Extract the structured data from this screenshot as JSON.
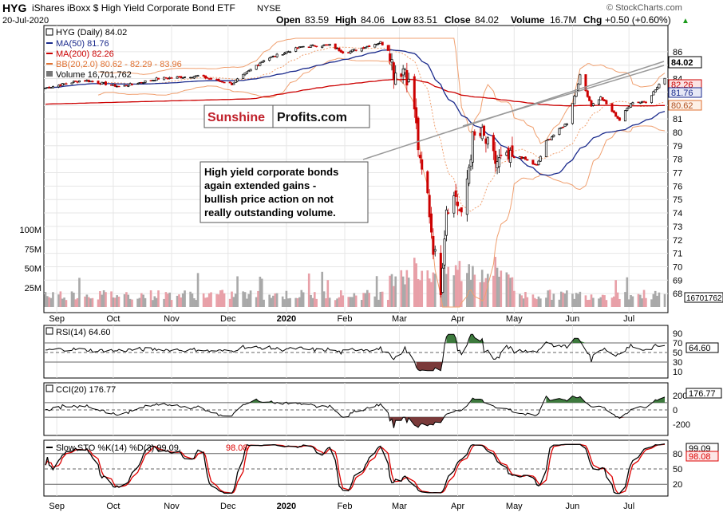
{
  "header": {
    "symbol": "HYG",
    "name": "iShares iBoxx $ High Yield Corporate Bond ETF",
    "exchange": "NYSE",
    "date": "20-Jul-2020",
    "open_label": "Open",
    "open": "83.59",
    "high_label": "High",
    "high": "84.06",
    "low_label": "Low",
    "low": "83.51",
    "close_label": "Close",
    "close": "84.02",
    "volume_label": "Volume",
    "volume": "16.7M",
    "chg_label": "Chg",
    "chg": "+0.50 (+0.60%)",
    "chg_arrow": "▲",
    "watermark": "© StockCharts.com"
  },
  "legend": {
    "main": "HYG (Daily) 84.02",
    "ma50": "MA(50) 81.76",
    "ma200": "MA(200) 82.26",
    "bb": "BB(20,2.0) 80.62 - 82.29 - 83.96",
    "volume": "Volume 16,701,762"
  },
  "colors": {
    "up": "#000000",
    "down": "#cc0000",
    "ma50": "#1a2a8c",
    "ma200": "#cc0000",
    "bb": "#f0a070",
    "vol_up": "#a9a9a9",
    "vol_down": "#e8a0a8",
    "positive_fill": "#3d7a3d",
    "negative_fill": "#7a3a3a",
    "stoch_k": "#000000",
    "stoch_d": "#dd0000",
    "trendline": "#999999"
  },
  "logo": {
    "part1": "Sunshine",
    "part2": "Profits.com"
  },
  "annotation": {
    "lines": [
      "High yield corporate bonds",
      "again extended gains -",
      "bullish price action on not",
      "really outstanding volume."
    ]
  },
  "price_badges": {
    "close": "84.02",
    "ma200": "82.26",
    "ma50": "81.76",
    "bb_lower": "80.62",
    "volume": "16701762"
  },
  "x_axis": {
    "months": [
      "Sep",
      "Oct",
      "Nov",
      "Dec",
      "2020",
      "Feb",
      "Mar",
      "Apr",
      "May",
      "Jun",
      "Jul"
    ]
  },
  "chart_data": [
    {
      "type": "candlestick",
      "title": "HYG (Daily) 84.02",
      "y_ticks": [
        "86",
        "85",
        "84",
        "83",
        "82",
        "81",
        "80",
        "79",
        "78",
        "77",
        "76",
        "75",
        "74",
        "73",
        "72",
        "71",
        "70",
        "69",
        "68"
      ],
      "ylim": [
        67,
        87
      ],
      "anchors": [
        {
          "date": "2019-08-26",
          "close": 83.3
        },
        {
          "date": "2019-09-15",
          "close": 83.9
        },
        {
          "date": "2019-10-05",
          "close": 83.4
        },
        {
          "date": "2019-10-25",
          "close": 84.0
        },
        {
          "date": "2019-11-15",
          "close": 84.2
        },
        {
          "date": "2019-12-03",
          "close": 83.6
        },
        {
          "date": "2019-12-20",
          "close": 85.4
        },
        {
          "date": "2020-01-10",
          "close": 86.4
        },
        {
          "date": "2020-01-24",
          "close": 86.5
        },
        {
          "date": "2020-02-01",
          "close": 85.9
        },
        {
          "date": "2020-02-20",
          "close": 86.7
        },
        {
          "date": "2020-02-25",
          "close": 86.0
        },
        {
          "date": "2020-02-27",
          "close": 84.5
        },
        {
          "date": "2020-03-04",
          "close": 84.8
        },
        {
          "date": "2020-03-09",
          "close": 81.8
        },
        {
          "date": "2020-03-12",
          "close": 77.5
        },
        {
          "date": "2020-03-16",
          "close": 75.3
        },
        {
          "date": "2020-03-19",
          "close": 71.5
        },
        {
          "date": "2020-03-23",
          "close": 68.5
        },
        {
          "date": "2020-03-26",
          "close": 74.5
        },
        {
          "date": "2020-03-31",
          "close": 75.3
        },
        {
          "date": "2020-04-03",
          "close": 73.5
        },
        {
          "date": "2020-04-09",
          "close": 79.5
        },
        {
          "date": "2020-04-14",
          "close": 79.8
        },
        {
          "date": "2020-04-21",
          "close": 77.8
        },
        {
          "date": "2020-04-30",
          "close": 78.0
        },
        {
          "date": "2020-05-04",
          "close": 78.2
        },
        {
          "date": "2020-05-13",
          "close": 77.5
        },
        {
          "date": "2020-05-18",
          "close": 79.3
        },
        {
          "date": "2020-05-29",
          "close": 80.7
        },
        {
          "date": "2020-06-05",
          "close": 84.2
        },
        {
          "date": "2020-06-11",
          "close": 82.0
        },
        {
          "date": "2020-06-16",
          "close": 82.6
        },
        {
          "date": "2020-06-26",
          "close": 80.9
        },
        {
          "date": "2020-07-02",
          "close": 82.2
        },
        {
          "date": "2020-07-10",
          "close": 82.3
        },
        {
          "date": "2020-07-20",
          "close": 84.02
        }
      ],
      "ma50": {
        "name": "MA(50) 81.76",
        "last": 81.76
      },
      "ma200": {
        "name": "MA(200) 82.26",
        "last": 82.26
      },
      "bollinger": {
        "name": "BB(20,2.0) 80.62 - 82.29 - 83.96",
        "lower": 80.62,
        "middle": 82.29,
        "upper": 83.96
      }
    },
    {
      "type": "bar",
      "title": "Volume 16,701,762",
      "y_ticks": [
        "100M",
        "75M",
        "50M",
        "25M"
      ],
      "ylim": [
        0,
        110
      ],
      "last": 16.7
    },
    {
      "type": "line",
      "title": "RSI(14) 64.60",
      "y_ticks": [
        "90",
        "70",
        "50",
        "30",
        "10"
      ],
      "ylim": [
        0,
        100
      ],
      "last": 64.6
    },
    {
      "type": "line",
      "title": "CCI(20) 176.77",
      "y_ticks": [
        "200",
        "0",
        "-200"
      ],
      "ylim": [
        -330,
        330
      ],
      "last": 176.77
    },
    {
      "type": "line",
      "title": "Slow STO %K(14) %D(3) 99.09,",
      "title_d": "98.08",
      "y_ticks": [
        "80",
        "50",
        "20"
      ],
      "ylim": [
        0,
        100
      ],
      "last_k": 99.09,
      "last_d": 98.08
    }
  ],
  "panels": {
    "rsi": {
      "label": "RSI(14) 64.60",
      "badge": "64.60"
    },
    "cci": {
      "label": "CCI(20) 176.77",
      "badge": "176.77"
    },
    "sto": {
      "label_k": "Slow STO %K(14) %D(3) 99.09,",
      "label_d": "98.08",
      "badge_k": "99.09",
      "badge_d": "98.08"
    }
  }
}
